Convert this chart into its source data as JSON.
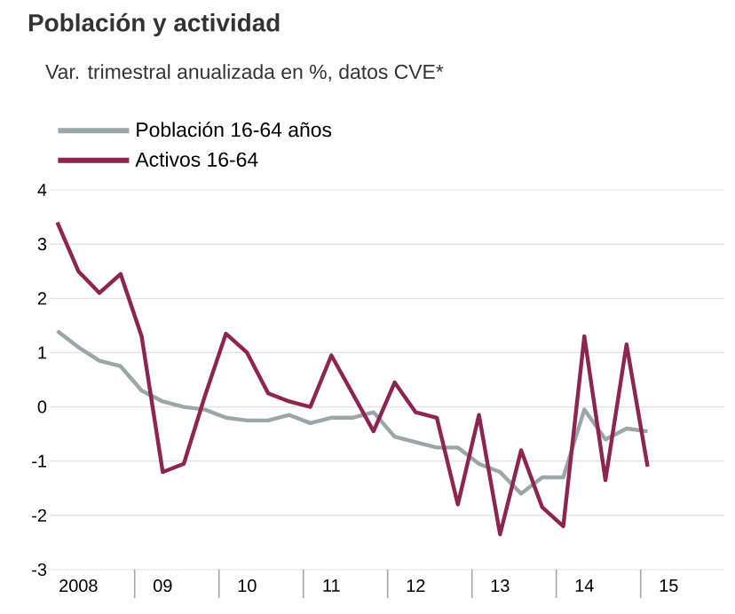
{
  "chart_data": {
    "type": "line",
    "title": "Población y actividad",
    "subtitle": "Var. trimestral anualizada en %, datos CVE*",
    "categories": [
      null,
      "2008",
      null,
      null,
      null,
      "09",
      null,
      null,
      null,
      "10",
      null,
      null,
      null,
      "11",
      null,
      null,
      null,
      "12",
      null,
      null,
      null,
      "13",
      null,
      null,
      null,
      "14",
      null,
      null,
      null,
      "15",
      null,
      null
    ],
    "series": [
      {
        "name": "Población 16-64 años",
        "color": "#9aa6a8",
        "values": [
          1.4,
          1.1,
          0.85,
          0.75,
          0.3,
          0.1,
          0.0,
          -0.05,
          -0.2,
          -0.25,
          -0.25,
          -0.15,
          -0.3,
          -0.2,
          -0.2,
          -0.1,
          -0.55,
          -0.65,
          -0.75,
          -0.75,
          -1.05,
          -1.2,
          -1.6,
          -1.3,
          -1.3,
          -0.05,
          -0.6,
          -0.4,
          -0.45,
          null,
          null,
          null
        ]
      },
      {
        "name": "Activos 16-64",
        "color": "#8e2450",
        "values": [
          3.4,
          2.5,
          2.1,
          2.45,
          1.3,
          -1.2,
          -1.05,
          0.2,
          1.35,
          1.0,
          0.25,
          0.1,
          0.0,
          0.95,
          0.25,
          -0.45,
          0.45,
          -0.1,
          -0.2,
          -1.8,
          -0.15,
          -2.35,
          -0.8,
          -1.85,
          -2.2,
          1.3,
          -1.35,
          1.15,
          -1.1,
          null,
          null,
          null
        ]
      }
    ],
    "ylim": [
      -3,
      4
    ],
    "yticks": [
      -3,
      -2,
      -1,
      0,
      1,
      2,
      3,
      4
    ],
    "grid": "y",
    "legend": "top left",
    "marker": "none",
    "line_style": "solid"
  }
}
